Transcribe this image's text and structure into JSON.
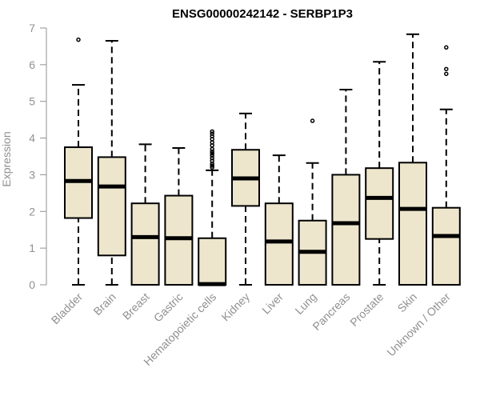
{
  "chart_data": {
    "type": "boxplot",
    "title": "ENSG00000242142 - SERBP1P3",
    "xlabel": "",
    "ylabel": "Expression",
    "ylim": [
      0,
      7
    ],
    "yticks": [
      "0",
      "1",
      "2",
      "3",
      "4",
      "5",
      "6",
      "7"
    ],
    "categories": [
      "Bladder",
      "Brain",
      "Breast",
      "Gastric",
      "Hematopoietic cells",
      "Kidney",
      "Liver",
      "Lung",
      "Pancreas",
      "Prostate",
      "Skin",
      "Unknown / Other"
    ],
    "boxes": [
      {
        "whisker_low": 0,
        "q1": 1.82,
        "median": 2.83,
        "q3": 3.75,
        "whisker_high": 5.45,
        "outliers": [
          6.68
        ]
      },
      {
        "whisker_low": 0,
        "q1": 0.8,
        "median": 2.68,
        "q3": 3.48,
        "whisker_high": 6.65,
        "outliers": []
      },
      {
        "whisker_low": 0,
        "q1": 0,
        "median": 1.3,
        "q3": 2.22,
        "whisker_high": 3.83,
        "outliers": []
      },
      {
        "whisker_low": 0,
        "q1": 0,
        "median": 1.27,
        "q3": 2.43,
        "whisker_high": 3.73,
        "outliers": []
      },
      {
        "whisker_low": 0,
        "q1": 0,
        "median": 0.02,
        "q3": 1.27,
        "whisker_high": 3.12,
        "outliers": [
          3.2,
          3.25,
          3.3,
          3.38,
          3.45,
          3.52,
          3.58,
          3.63,
          3.7,
          3.8,
          3.88,
          3.97,
          4.05,
          4.12,
          4.18
        ]
      },
      {
        "whisker_low": 0,
        "q1": 2.15,
        "median": 2.9,
        "q3": 3.68,
        "whisker_high": 4.67,
        "outliers": []
      },
      {
        "whisker_low": 0,
        "q1": 0,
        "median": 1.18,
        "q3": 2.22,
        "whisker_high": 3.53,
        "outliers": []
      },
      {
        "whisker_low": 0,
        "q1": 0,
        "median": 0.9,
        "q3": 1.75,
        "whisker_high": 3.32,
        "outliers": [
          4.47
        ]
      },
      {
        "whisker_low": 0,
        "q1": 0,
        "median": 1.68,
        "q3": 3.0,
        "whisker_high": 5.32,
        "outliers": []
      },
      {
        "whisker_low": 0,
        "q1": 1.25,
        "median": 2.37,
        "q3": 3.18,
        "whisker_high": 6.08,
        "outliers": []
      },
      {
        "whisker_low": 0,
        "q1": 0,
        "median": 2.07,
        "q3": 3.33,
        "whisker_high": 6.83,
        "outliers": []
      },
      {
        "whisker_low": 0,
        "q1": 0,
        "median": 1.33,
        "q3": 2.1,
        "whisker_high": 4.78,
        "outliers": [
          5.75,
          5.88,
          6.47
        ]
      }
    ],
    "box_fill": "#ede6cc",
    "box_stroke": "#000000",
    "grid": false,
    "legend": "none"
  }
}
